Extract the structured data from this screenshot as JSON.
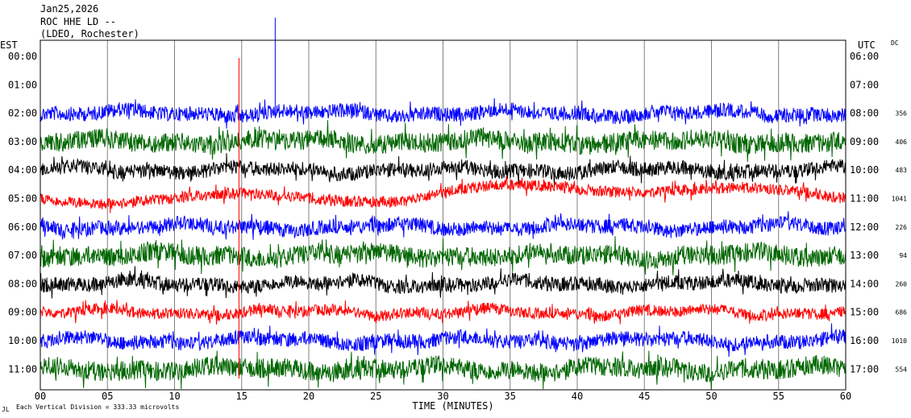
{
  "header": {
    "date": "Jan25,2026",
    "station": "ROC HHE LD --",
    "network": "(LDEO, Rochester)"
  },
  "footer": {
    "scale_text": "Each Vertical Division =  333.33 microvolts",
    "corner_mark": "JL"
  },
  "chart_data": {
    "type": "line",
    "title": "",
    "xlabel": "TIME (MINUTES)",
    "left_axis_title": "EST",
    "right_axis_title": "UTC",
    "dc_title": "DC",
    "xlim": [
      0,
      60
    ],
    "x_ticks": [
      "00",
      "05",
      "10",
      "15",
      "20",
      "25",
      "30",
      "35",
      "40",
      "45",
      "50",
      "55",
      "60"
    ],
    "grid": "vertical",
    "rows": [
      {
        "est": "00:00",
        "utc": "06:00",
        "dc": "",
        "color": "#0000ff"
      },
      {
        "est": "01:00",
        "utc": "07:00",
        "dc": "",
        "color": "#0000ff"
      },
      {
        "est": "02:00",
        "utc": "08:00",
        "dc": "356",
        "color": "#0000ff"
      },
      {
        "est": "03:00",
        "utc": "09:00",
        "dc": "406",
        "color": "#006600"
      },
      {
        "est": "04:00",
        "utc": "10:00",
        "dc": "483",
        "color": "#000000"
      },
      {
        "est": "05:00",
        "utc": "11:00",
        "dc": "1041",
        "color": "#ff0000"
      },
      {
        "est": "06:00",
        "utc": "12:00",
        "dc": "226",
        "color": "#0000ff"
      },
      {
        "est": "07:00",
        "utc": "13:00",
        "dc": "94",
        "color": "#006600"
      },
      {
        "est": "08:00",
        "utc": "14:00",
        "dc": "260",
        "color": "#000000"
      },
      {
        "est": "09:00",
        "utc": "15:00",
        "dc": "686",
        "color": "#ff0000"
      },
      {
        "est": "10:00",
        "utc": "16:00",
        "dc": "1010",
        "color": "#0000ff"
      },
      {
        "est": "11:00",
        "utc": "17:00",
        "dc": "554",
        "color": "#006600"
      }
    ],
    "traces_start_row": 2,
    "spikes": [
      {
        "row": 2,
        "minute": 17.5,
        "color": "#0000ff"
      },
      {
        "row": 4,
        "minute": 14.8,
        "color": "#ff0000"
      }
    ]
  }
}
